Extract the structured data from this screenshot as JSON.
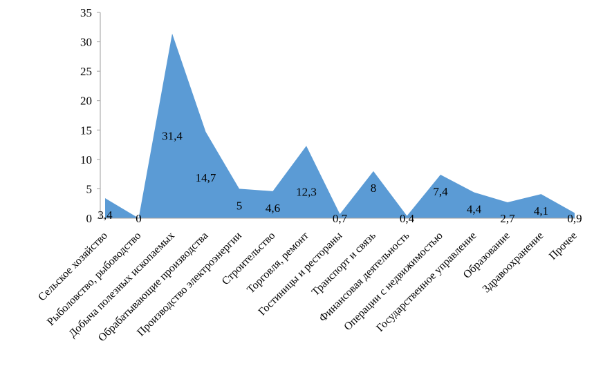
{
  "chart_data": {
    "type": "area",
    "categories": [
      "Сельское хозяйство",
      "Рыболовство, рыбоводство",
      "Добыча полезных ископаемых",
      "Обрабатывающие производства",
      "Производство электроэнергии",
      "Строительство",
      "Торговля, ремонт",
      "Гостиницы и рестораны",
      "Транспорт и связь",
      "Финансовая деятельность",
      "Операции с недвижимостью",
      "Государственное управление",
      "Образование",
      "Здравоохранение",
      "Прочее"
    ],
    "values": [
      3.4,
      0,
      31.4,
      14.7,
      5,
      4.6,
      12.3,
      0.7,
      8,
      0.4,
      7.4,
      4.4,
      2.7,
      4.1,
      0.9
    ],
    "data_labels": [
      "3,4",
      "0",
      "31,4",
      "14,7",
      "5",
      "4,6",
      "12,3",
      "0,7",
      "8",
      "0,4",
      "7,4",
      "4,4",
      "2,7",
      "4,1",
      "0,9"
    ],
    "ylim": [
      0,
      35
    ],
    "yticks": [
      0,
      5,
      10,
      15,
      20,
      25,
      30,
      35
    ],
    "title": "",
    "xlabel": "",
    "ylabel": "",
    "grid": false,
    "legend": "none",
    "fill_color": "#5b9bd5"
  }
}
